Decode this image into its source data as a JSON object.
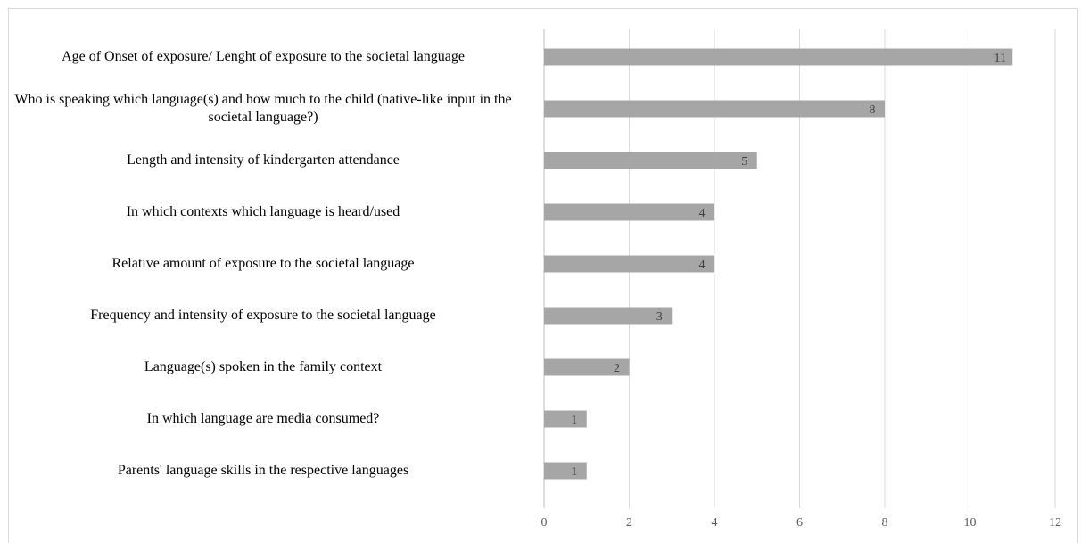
{
  "chart_data": {
    "type": "bar",
    "orientation": "horizontal",
    "title": "",
    "xlabel": "",
    "ylabel": "",
    "categories": [
      "Age of Onset of exposure/ Lenght of exposure to the societal language",
      "Who is speaking which language(s) and how much to the child (native-like input in the societal language?)",
      "Length and intensity of kindergarten attendance",
      "In which contexts which language is heard/used",
      "Relative amount of exposure to the societal language",
      "Frequency and intensity of exposure to the societal language",
      "Language(s) spoken in the family context",
      "In which language are media consumed?",
      "Parents' language skills in the respective languages"
    ],
    "values": [
      11,
      8,
      5,
      4,
      4,
      3,
      2,
      1,
      1
    ],
    "xlim": [
      0,
      12
    ],
    "xticks": [
      "0",
      "2",
      "4",
      "6",
      "8",
      "10",
      "12"
    ],
    "grid": true,
    "bar_color": "#a6a6a6",
    "data_labels": true
  }
}
